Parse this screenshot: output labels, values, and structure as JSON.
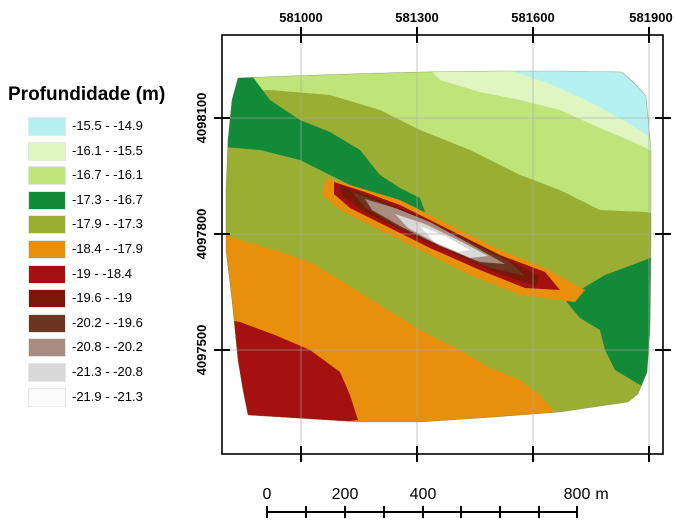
{
  "legend": {
    "title": "Profundidade (m)",
    "classes": [
      {
        "label": "-15.5 - -14.9",
        "color": "#b7f0f0"
      },
      {
        "label": "-16.1 - -15.5",
        "color": "#dff5c2"
      },
      {
        "label": "-16.7 - -16.1",
        "color": "#bfe57a"
      },
      {
        "label": "-17.3 - -16.7",
        "color": "#138a38"
      },
      {
        "label": "-17.9 - -17.3",
        "color": "#9aae33"
      },
      {
        "label": "-18.4 - -17.9",
        "color": "#e8900b"
      },
      {
        "label": "-19 - -18.4",
        "color": "#a51010"
      },
      {
        "label": "-19.6 - -19",
        "color": "#7a1808"
      },
      {
        "label": "-20.2 - -19.6",
        "color": "#6b3520"
      },
      {
        "label": "-20.8 - -20.2",
        "color": "#a88c80"
      },
      {
        "label": "-21.3 - -20.8",
        "color": "#d8d8d8"
      },
      {
        "label": "-21.9 - -21.3",
        "color": "#fbfbfb"
      }
    ]
  },
  "map": {
    "x_ticks": [
      "581000",
      "581300",
      "581600",
      "581900"
    ],
    "y_ticks": [
      "4098100",
      "4097800",
      "4097500"
    ]
  },
  "scale_bar": {
    "labels": [
      "0",
      "200",
      "400",
      "800"
    ],
    "unit": "m"
  }
}
